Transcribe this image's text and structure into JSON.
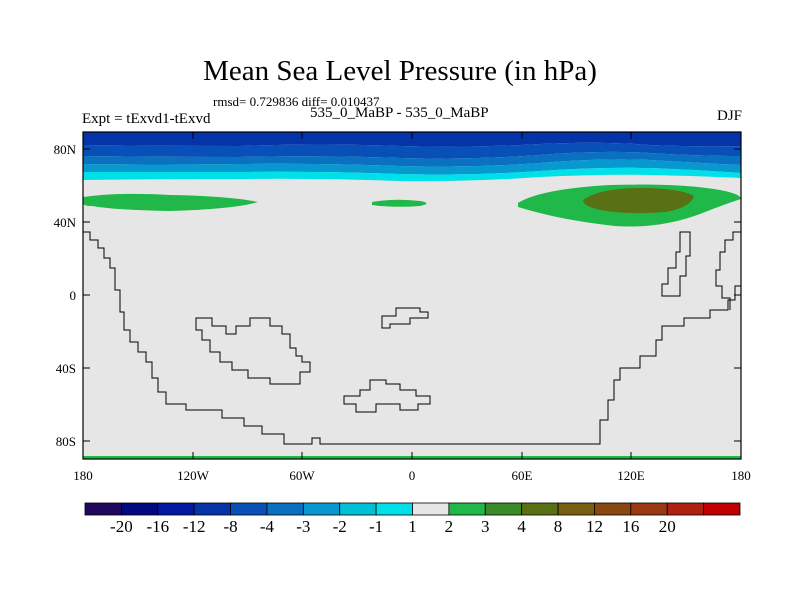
{
  "chart_data": {
    "type": "heatmap",
    "title": "Mean Sea Level Pressure (in hPa)",
    "stats": "rmsd= 0.729836 diff= 0.010437",
    "left_label": "Expt = tExvd1-tExvd",
    "center_label": "535_0_MaBP - 535_0_MaBP",
    "right_label": "DJF",
    "x_ticks": [
      "180",
      "120W",
      "60W",
      "0",
      "60E",
      "120E",
      "180"
    ],
    "y_ticks": [
      "80N",
      "40N",
      "0",
      "40S",
      "80S"
    ],
    "xlim": [
      -180,
      180
    ],
    "ylim": [
      -90,
      90
    ],
    "levels": [
      "-20",
      "-16",
      "-12",
      "-8",
      "-4",
      "-3",
      "-2",
      "-1",
      "1",
      "2",
      "3",
      "4",
      "8",
      "12",
      "16",
      "20"
    ],
    "colors": [
      "#20085f",
      "#000a80",
      "#0218a0",
      "#0434a8",
      "#0850b8",
      "#0a70c0",
      "#0898d0",
      "#00c0d8",
      "#00e0e8",
      "#e6e6e6",
      "#20b848",
      "#3a8a28",
      "#5a7014",
      "#785e10",
      "#884810",
      "#9a3812",
      "#b02010",
      "#c00000"
    ]
  }
}
